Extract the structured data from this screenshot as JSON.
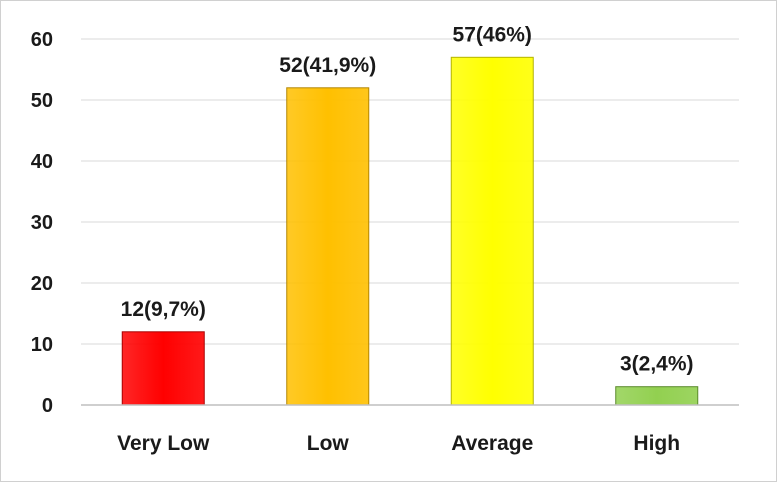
{
  "chart_data": {
    "type": "bar",
    "title": "",
    "xlabel": "",
    "ylabel": "",
    "categories": [
      "Very Low",
      "Low",
      "Average",
      "High"
    ],
    "values": [
      12,
      52,
      57,
      3
    ],
    "data_labels": [
      "12(9,7%)",
      "52(41,9%)",
      "57(46%)",
      "3(2,4%)"
    ],
    "bar_colors": [
      "#ff0000",
      "#ffc000",
      "#ffff00",
      "#92d050"
    ],
    "bar_border_colors": [
      "#a80000",
      "#b38600",
      "#b3b300",
      "#5a8a2a"
    ],
    "ylim": [
      0,
      60
    ],
    "yticks": [
      0,
      10,
      20,
      30,
      40,
      50,
      60
    ],
    "grid": true,
    "legend": "none"
  }
}
